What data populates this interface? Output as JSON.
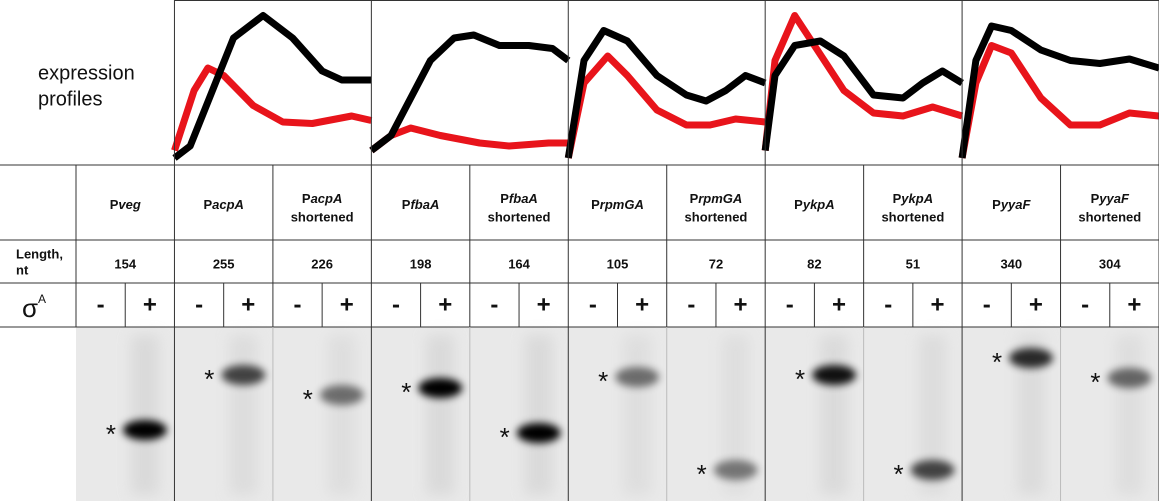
{
  "header": {
    "profiles_line1": "expression",
    "profiles_line2": "profiles"
  },
  "rows": {
    "length_line1": "Length,",
    "length_line2": "nt",
    "sigma": "σ",
    "sigma_sup": "A"
  },
  "signs": [
    "-",
    "+"
  ],
  "marker": "*",
  "columns": [
    {
      "prefix": "P",
      "gene": "veg",
      "length": 154
    },
    {
      "prefix": "P",
      "gene": "acpA",
      "length": 255
    },
    {
      "prefix": "P",
      "gene": "acpA",
      "suffix": "shortened",
      "length": 226
    },
    {
      "prefix": "P",
      "gene": "fbaA",
      "length": 198
    },
    {
      "prefix": "P",
      "gene": "fbaA",
      "suffix": "shortened",
      "length": 164
    },
    {
      "prefix": "P",
      "gene": "rpmGA",
      "length": 105
    },
    {
      "prefix": "P",
      "gene": "rpmGA",
      "suffix": "shortened",
      "length": 72
    },
    {
      "prefix": "P",
      "gene": "ykpA",
      "length": 82
    },
    {
      "prefix": "P",
      "gene": "ykpA",
      "suffix": "shortened",
      "length": 51
    },
    {
      "prefix": "P",
      "gene": "yyaF",
      "length": 340
    },
    {
      "prefix": "P",
      "gene": "yyaF",
      "suffix": "shortened",
      "length": 304
    }
  ]
}
